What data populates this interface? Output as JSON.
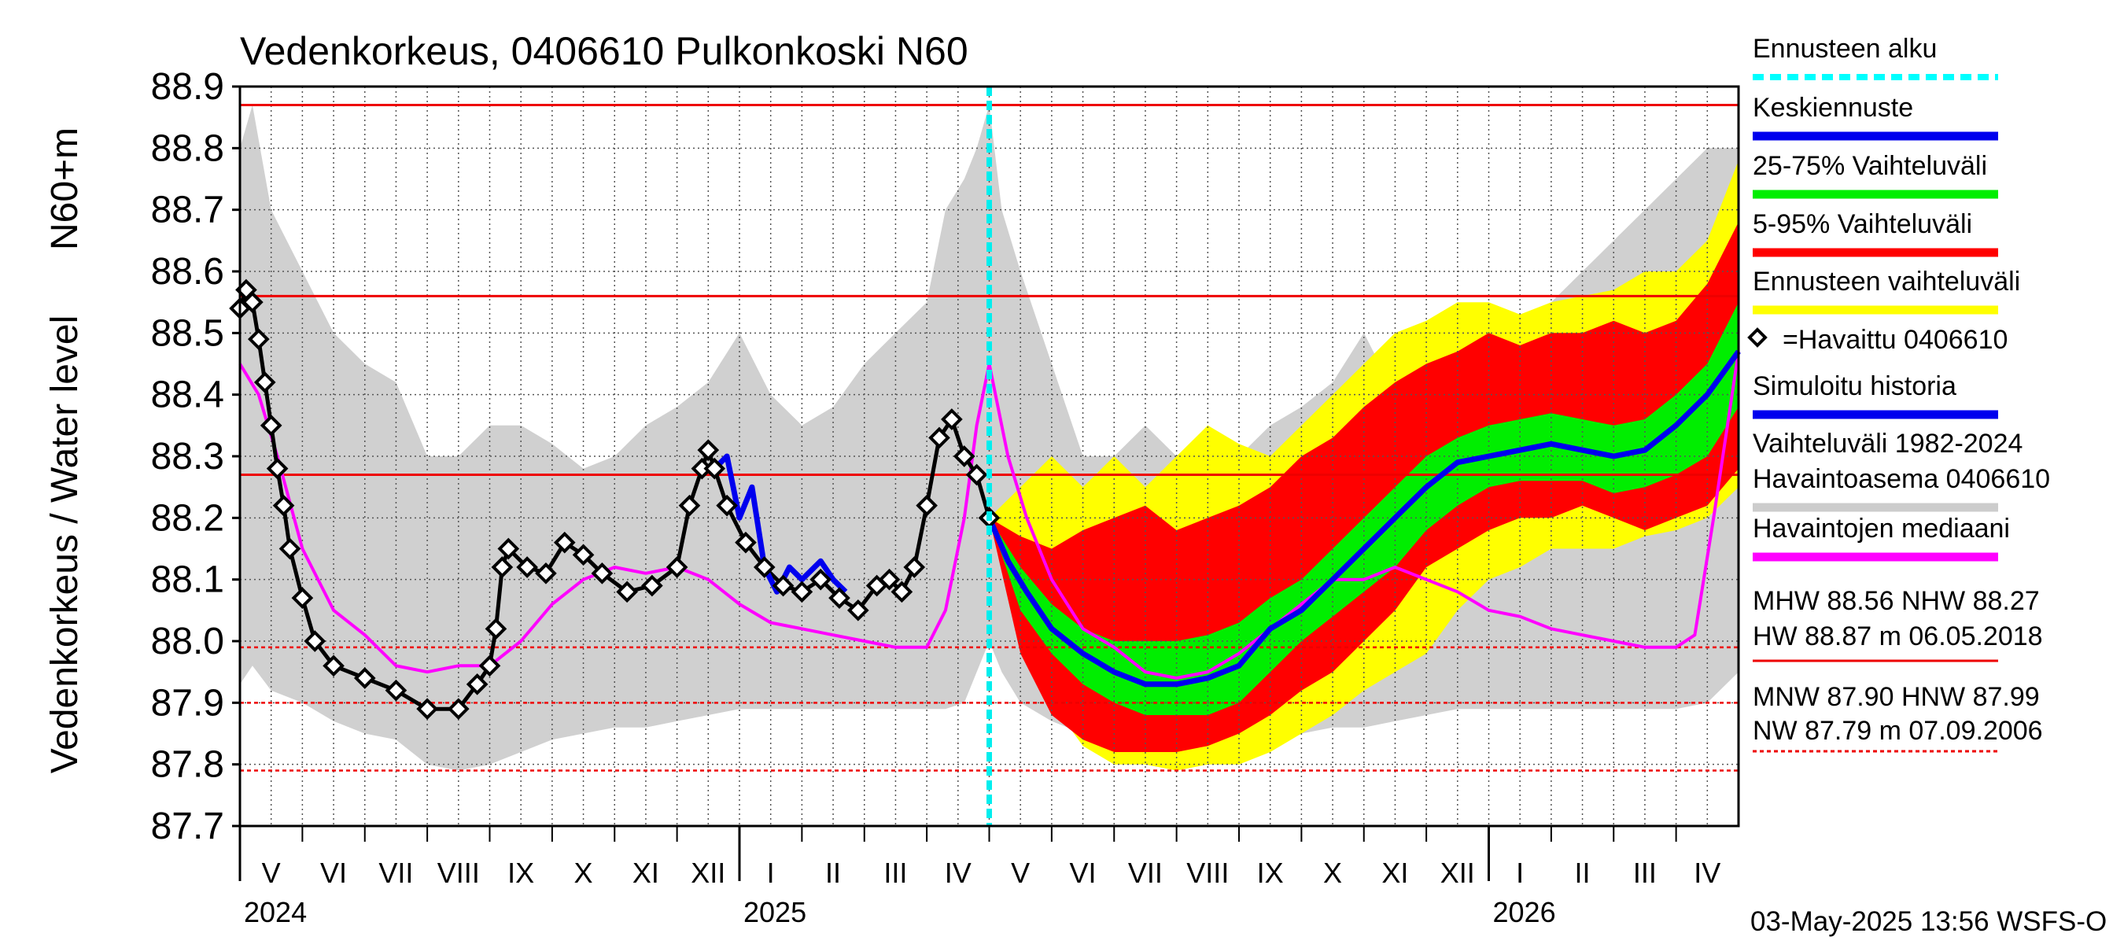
{
  "chart_data": {
    "type": "line",
    "title": "Vedenkorkeus, 0406610 Pulkonkoski N60",
    "ylabel_left": "Vedenkorkeus / Water level",
    "ylabel_right": "N60+m",
    "ylim": [
      87.7,
      88.9
    ],
    "yticks": [
      "88.9",
      "88.8",
      "88.7",
      "88.6",
      "88.5",
      "88.4",
      "88.3",
      "88.2",
      "88.1",
      "88.0",
      "87.9",
      "87.8",
      "87.7"
    ],
    "months": [
      "V",
      "VI",
      "VII",
      "VIII",
      "IX",
      "X",
      "XI",
      "XII",
      "I",
      "II",
      "III",
      "IV",
      "V",
      "VI",
      "VII",
      "VIII",
      "IX",
      "X",
      "XI",
      "XII",
      "I",
      "II",
      "III",
      "IV"
    ],
    "years": [
      "2024",
      "2025",
      "2026"
    ],
    "grid": true,
    "legend_position": "right",
    "forecast_start_month_index": 12,
    "reference_lines": {
      "HW": 88.87,
      "MHW": 88.56,
      "NHW": 88.27,
      "HNW": 87.99,
      "MNW": 87.9,
      "NW": 87.79
    },
    "legend": [
      {
        "label": "Ennusteen alku",
        "color": "#00ffff",
        "style": "dashed"
      },
      {
        "label": "Keskiennuste",
        "color": "#0000ee",
        "style": "solid"
      },
      {
        "label": "25-75% Vaihteluväli",
        "color": "#00ee00",
        "style": "solid"
      },
      {
        "label": "5-95% Vaihteluväli",
        "color": "#ff0000",
        "style": "solid"
      },
      {
        "label": "Ennusteen vaihteluväli",
        "color": "#ffff00",
        "style": "solid"
      },
      {
        "label": "=Havaittu 0406610",
        "color": "#000000",
        "style": "marker"
      },
      {
        "label": "Simuloitu historia",
        "color": "#0000ee",
        "style": "solid"
      },
      {
        "label": "Vaihteluväli 1982-2024",
        "label2": " Havaintoasema 0406610",
        "color": "#cccccc",
        "style": "solid"
      },
      {
        "label": "Havaintojen mediaani",
        "color": "#ff00ff",
        "style": "solid"
      }
    ],
    "stats": {
      "line1": "MHW  88.56 NHW  88.27",
      "line2": "HW  88.87 m 06.05.2018",
      "line3": "MNW  87.90 HNW  87.99",
      "line4": "NW  87.79 m 07.09.2006"
    },
    "footer": "03-May-2025 13:56 WSFS-O",
    "series": [
      {
        "name": "=Havaittu 0406610",
        "color": "#000000",
        "x": [
          0.0,
          0.1,
          0.2,
          0.3,
          0.4,
          0.5,
          0.6,
          0.7,
          0.8,
          1.0,
          1.2,
          1.5,
          2.0,
          2.5,
          3.0,
          3.5,
          3.8,
          4.0,
          4.1,
          4.2,
          4.3,
          4.6,
          4.9,
          5.2,
          5.5,
          5.8,
          6.2,
          6.6,
          7.0,
          7.2,
          7.4,
          7.5,
          7.6,
          7.8,
          8.1,
          8.4,
          8.7,
          9.0,
          9.3,
          9.6,
          9.9,
          10.2,
          10.4,
          10.6,
          10.8,
          11.0,
          11.2,
          11.4,
          11.6,
          11.8,
          12.0
        ],
        "y": [
          88.54,
          88.57,
          88.55,
          88.49,
          88.42,
          88.35,
          88.28,
          88.22,
          88.15,
          88.07,
          88.0,
          87.96,
          87.94,
          87.92,
          87.89,
          87.89,
          87.93,
          87.96,
          88.02,
          88.12,
          88.15,
          88.12,
          88.11,
          88.16,
          88.14,
          88.11,
          88.08,
          88.09,
          88.12,
          88.22,
          88.28,
          88.31,
          88.28,
          88.22,
          88.16,
          88.12,
          88.09,
          88.08,
          88.1,
          88.07,
          88.05,
          88.09,
          88.1,
          88.08,
          88.12,
          88.22,
          88.33,
          88.36,
          88.3,
          88.27,
          88.2
        ]
      },
      {
        "name": "Simuloitu historia",
        "color": "#0000ee",
        "x": [
          7.6,
          7.8,
          8.0,
          8.2,
          8.4,
          8.6,
          8.8,
          9.0,
          9.3,
          9.5,
          9.7
        ],
        "y": [
          88.28,
          88.3,
          88.2,
          88.25,
          88.12,
          88.08,
          88.12,
          88.1,
          88.13,
          88.1,
          88.08
        ]
      },
      {
        "name": "Havaintojen mediaani",
        "color": "#ff00ff",
        "x": [
          0.0,
          0.3,
          0.6,
          1.0,
          1.5,
          2.0,
          2.5,
          3.0,
          3.5,
          4.0,
          4.5,
          5.0,
          5.5,
          6.0,
          6.5,
          7.0,
          7.5,
          8.0,
          8.5,
          9.0,
          9.5,
          10.0,
          10.5,
          11.0,
          11.3,
          11.6,
          11.8,
          12.0,
          12.3,
          12.6,
          13.0,
          13.5,
          14.0,
          14.5,
          15.0,
          15.5,
          16.0,
          16.5,
          17.0,
          17.5,
          18.0,
          18.5,
          19.0,
          19.5,
          20.0,
          20.5,
          21.0,
          21.5,
          22.0,
          22.5,
          23.0,
          23.3,
          23.6,
          24.0
        ],
        "y": [
          88.45,
          88.4,
          88.3,
          88.15,
          88.05,
          88.01,
          87.96,
          87.95,
          87.96,
          87.96,
          88.0,
          88.06,
          88.1,
          88.12,
          88.11,
          88.12,
          88.1,
          88.06,
          88.03,
          88.02,
          88.01,
          88.0,
          87.99,
          87.99,
          88.05,
          88.2,
          88.35,
          88.45,
          88.3,
          88.2,
          88.1,
          88.02,
          87.99,
          87.95,
          87.94,
          87.95,
          87.98,
          88.02,
          88.06,
          88.1,
          88.1,
          88.12,
          88.1,
          88.08,
          88.05,
          88.04,
          88.02,
          88.01,
          88.0,
          87.99,
          87.99,
          88.01,
          88.2,
          88.47
        ]
      },
      {
        "name": "Keskiennuste",
        "color": "#0000ee",
        "x": [
          12.0,
          12.3,
          12.6,
          13.0,
          13.5,
          14.0,
          14.5,
          15.0,
          15.5,
          16.0,
          16.5,
          17.0,
          17.5,
          18.0,
          18.5,
          19.0,
          19.5,
          20.0,
          20.5,
          21.0,
          21.5,
          22.0,
          22.5,
          23.0,
          23.5,
          24.0
        ],
        "y": [
          88.2,
          88.13,
          88.08,
          88.02,
          87.98,
          87.95,
          87.93,
          87.93,
          87.94,
          87.96,
          88.02,
          88.05,
          88.1,
          88.15,
          88.2,
          88.25,
          88.29,
          88.3,
          88.31,
          88.32,
          88.31,
          88.3,
          88.31,
          88.35,
          88.4,
          88.47
        ]
      }
    ],
    "bands": [
      {
        "name": "Vaihteluväli 1982-2024",
        "color": "#d0d0d0",
        "x": [
          0.0,
          0.2,
          0.5,
          1.0,
          1.5,
          2.0,
          2.5,
          3.0,
          3.5,
          4.0,
          4.5,
          5.0,
          5.5,
          6.0,
          6.5,
          7.0,
          7.5,
          8.0,
          8.5,
          9.0,
          9.5,
          10.0,
          10.5,
          11.0,
          11.3,
          11.6,
          11.8,
          12.0,
          12.2,
          12.5,
          13.0,
          13.5,
          14.0,
          14.5,
          15.0,
          15.5,
          16.0,
          16.5,
          17.0,
          17.5,
          18.0,
          18.5,
          19.0,
          19.5,
          20.0,
          20.5,
          21.0,
          21.5,
          22.0,
          22.5,
          23.0,
          23.5,
          24.0
        ],
        "upper": [
          88.8,
          88.87,
          88.7,
          88.6,
          88.5,
          88.45,
          88.42,
          88.3,
          88.3,
          88.35,
          88.35,
          88.32,
          88.28,
          88.3,
          88.35,
          88.38,
          88.42,
          88.5,
          88.4,
          88.35,
          88.38,
          88.45,
          88.5,
          88.55,
          88.7,
          88.75,
          88.8,
          88.87,
          88.7,
          88.6,
          88.45,
          88.3,
          88.3,
          88.35,
          88.3,
          88.28,
          88.3,
          88.35,
          88.38,
          88.42,
          88.5,
          88.4,
          88.35,
          88.38,
          88.45,
          88.5,
          88.55,
          88.6,
          88.65,
          88.7,
          88.75,
          88.8,
          88.8
        ],
        "lower": [
          87.93,
          87.96,
          87.92,
          87.9,
          87.87,
          87.85,
          87.84,
          87.8,
          87.79,
          87.8,
          87.82,
          87.84,
          87.85,
          87.86,
          87.86,
          87.87,
          87.88,
          87.89,
          87.89,
          87.89,
          87.89,
          87.89,
          87.89,
          87.89,
          87.89,
          87.9,
          87.95,
          88.0,
          87.95,
          87.9,
          87.87,
          87.85,
          87.84,
          87.8,
          87.79,
          87.8,
          87.82,
          87.84,
          87.85,
          87.86,
          87.86,
          87.87,
          87.88,
          87.89,
          87.89,
          87.89,
          87.89,
          87.89,
          87.89,
          87.89,
          87.89,
          87.9,
          87.95
        ]
      },
      {
        "name": "Ennusteen vaihteluväli",
        "color": "#ffff00",
        "x": [
          12.0,
          12.5,
          13.0,
          13.5,
          14.0,
          14.5,
          15.0,
          15.5,
          16.0,
          16.5,
          17.0,
          17.5,
          18.0,
          18.5,
          19.0,
          19.5,
          20.0,
          20.5,
          21.0,
          21.5,
          22.0,
          22.5,
          23.0,
          23.5,
          24.0
        ],
        "upper": [
          88.2,
          88.25,
          88.3,
          88.25,
          88.3,
          88.25,
          88.3,
          88.35,
          88.32,
          88.3,
          88.35,
          88.4,
          88.45,
          88.5,
          88.52,
          88.55,
          88.55,
          88.53,
          88.55,
          88.56,
          88.57,
          88.6,
          88.6,
          88.65,
          88.78
        ],
        "lower": [
          88.2,
          88.0,
          87.9,
          87.83,
          87.8,
          87.8,
          87.79,
          87.8,
          87.8,
          87.82,
          87.85,
          87.88,
          87.92,
          87.95,
          87.98,
          88.05,
          88.1,
          88.12,
          88.15,
          88.15,
          88.15,
          88.17,
          88.18,
          88.2,
          88.25
        ]
      },
      {
        "name": "5-95% Vaihteluväli",
        "color": "#ff0000",
        "x": [
          12.0,
          12.5,
          13.0,
          13.5,
          14.0,
          14.5,
          15.0,
          15.5,
          16.0,
          16.5,
          17.0,
          17.5,
          18.0,
          18.5,
          19.0,
          19.5,
          20.0,
          20.5,
          21.0,
          21.5,
          22.0,
          22.5,
          23.0,
          23.5,
          24.0
        ],
        "upper": [
          88.2,
          88.17,
          88.15,
          88.18,
          88.2,
          88.22,
          88.18,
          88.2,
          88.22,
          88.25,
          88.3,
          88.33,
          88.38,
          88.42,
          88.45,
          88.47,
          88.5,
          88.48,
          88.5,
          88.5,
          88.52,
          88.5,
          88.52,
          88.58,
          88.68
        ],
        "lower": [
          88.2,
          87.98,
          87.88,
          87.84,
          87.82,
          87.82,
          87.82,
          87.83,
          87.85,
          87.88,
          87.92,
          87.95,
          88.0,
          88.05,
          88.12,
          88.15,
          88.18,
          88.2,
          88.2,
          88.22,
          88.2,
          88.18,
          88.2,
          88.22,
          88.28
        ]
      },
      {
        "name": "25-75% Vaihteluväli",
        "color": "#00ee00",
        "x": [
          12.0,
          12.5,
          13.0,
          13.5,
          14.0,
          14.5,
          15.0,
          15.5,
          16.0,
          16.5,
          17.0,
          17.5,
          18.0,
          18.5,
          19.0,
          19.5,
          20.0,
          20.5,
          21.0,
          21.5,
          22.0,
          22.5,
          23.0,
          23.5,
          24.0
        ],
        "upper": [
          88.2,
          88.12,
          88.06,
          88.02,
          88.0,
          88.0,
          88.0,
          88.01,
          88.03,
          88.07,
          88.1,
          88.15,
          88.2,
          88.25,
          88.3,
          88.33,
          88.35,
          88.36,
          88.37,
          88.36,
          88.35,
          88.36,
          88.4,
          88.45,
          88.55
        ],
        "lower": [
          88.2,
          88.05,
          87.98,
          87.93,
          87.9,
          87.88,
          87.88,
          87.88,
          87.9,
          87.95,
          88.0,
          88.04,
          88.08,
          88.12,
          88.18,
          88.22,
          88.25,
          88.26,
          88.26,
          88.26,
          88.24,
          88.25,
          88.27,
          88.3,
          88.38
        ]
      }
    ]
  }
}
